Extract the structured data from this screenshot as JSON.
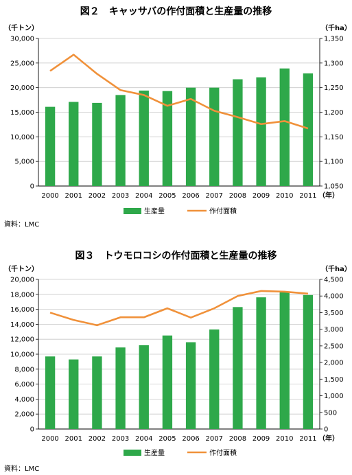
{
  "chart_data": [
    {
      "type": "bar+line",
      "title": "図２　キャッサバの作付面積と生産量の推移",
      "source": "資料：LMC",
      "y_left_unit": "（千トン）",
      "y_right_unit": "（千ha）",
      "x_unit": "（年）",
      "categories": [
        "2000",
        "2001",
        "2002",
        "2003",
        "2004",
        "2005",
        "2006",
        "2007",
        "2008",
        "2009",
        "2010",
        "2011"
      ],
      "y_left_ticks": [
        "0",
        "5,000",
        "10,000",
        "15,000",
        "20,000",
        "25,000",
        "30,000"
      ],
      "y_right_ticks": [
        "1,050",
        "1,100",
        "1,150",
        "1,200",
        "1,250",
        "1,300",
        "1,350"
      ],
      "ylim_left": [
        0,
        30000
      ],
      "ylim_right": [
        1050,
        1350
      ],
      "legend_placement": "bottom",
      "series": [
        {
          "name": "生産量",
          "type": "bar",
          "axis": "left",
          "color": "#2ea84a",
          "values": [
            16100,
            17100,
            16900,
            18500,
            19400,
            19300,
            20000,
            20000,
            21700,
            22100,
            23900,
            22900
          ]
        },
        {
          "name": "作付面積",
          "type": "line",
          "axis": "right",
          "color": "#f0913a",
          "values": [
            1284,
            1317,
            1278,
            1245,
            1235,
            1213,
            1227,
            1203,
            1190,
            1176,
            1182,
            1167
          ]
        }
      ]
    },
    {
      "type": "bar+line",
      "title": "図３　トウモロコシの作付面積と生産量の推移",
      "source": "資料：LMC",
      "y_left_unit": "（千トン）",
      "y_right_unit": "（千ha）",
      "x_unit": "（年）",
      "categories": [
        "2000",
        "2001",
        "2002",
        "2003",
        "2004",
        "2005",
        "2006",
        "2007",
        "2008",
        "2009",
        "2010",
        "2011"
      ],
      "y_left_ticks": [
        "0",
        "2,000",
        "4,000",
        "6,000",
        "8,000",
        "10,000",
        "12,000",
        "14,000",
        "16,000",
        "18,000",
        "20,000"
      ],
      "y_right_ticks": [
        "0",
        "500",
        "1,000",
        "1,500",
        "2,000",
        "2,500",
        "3,000",
        "3,500",
        "4,000",
        "4,500"
      ],
      "ylim_left": [
        0,
        20000
      ],
      "ylim_right": [
        0,
        4500
      ],
      "legend_placement": "bottom",
      "series": [
        {
          "name": "生産量",
          "type": "bar",
          "axis": "left",
          "color": "#2ea84a",
          "values": [
            9700,
            9300,
            9700,
            10900,
            11200,
            12500,
            11600,
            13300,
            16300,
            17600,
            18300,
            17900
          ]
        },
        {
          "name": "作付面積",
          "type": "line",
          "axis": "right",
          "color": "#f0913a",
          "values": [
            3500,
            3280,
            3120,
            3360,
            3360,
            3630,
            3350,
            3630,
            4000,
            4150,
            4130,
            4070
          ]
        }
      ]
    }
  ]
}
